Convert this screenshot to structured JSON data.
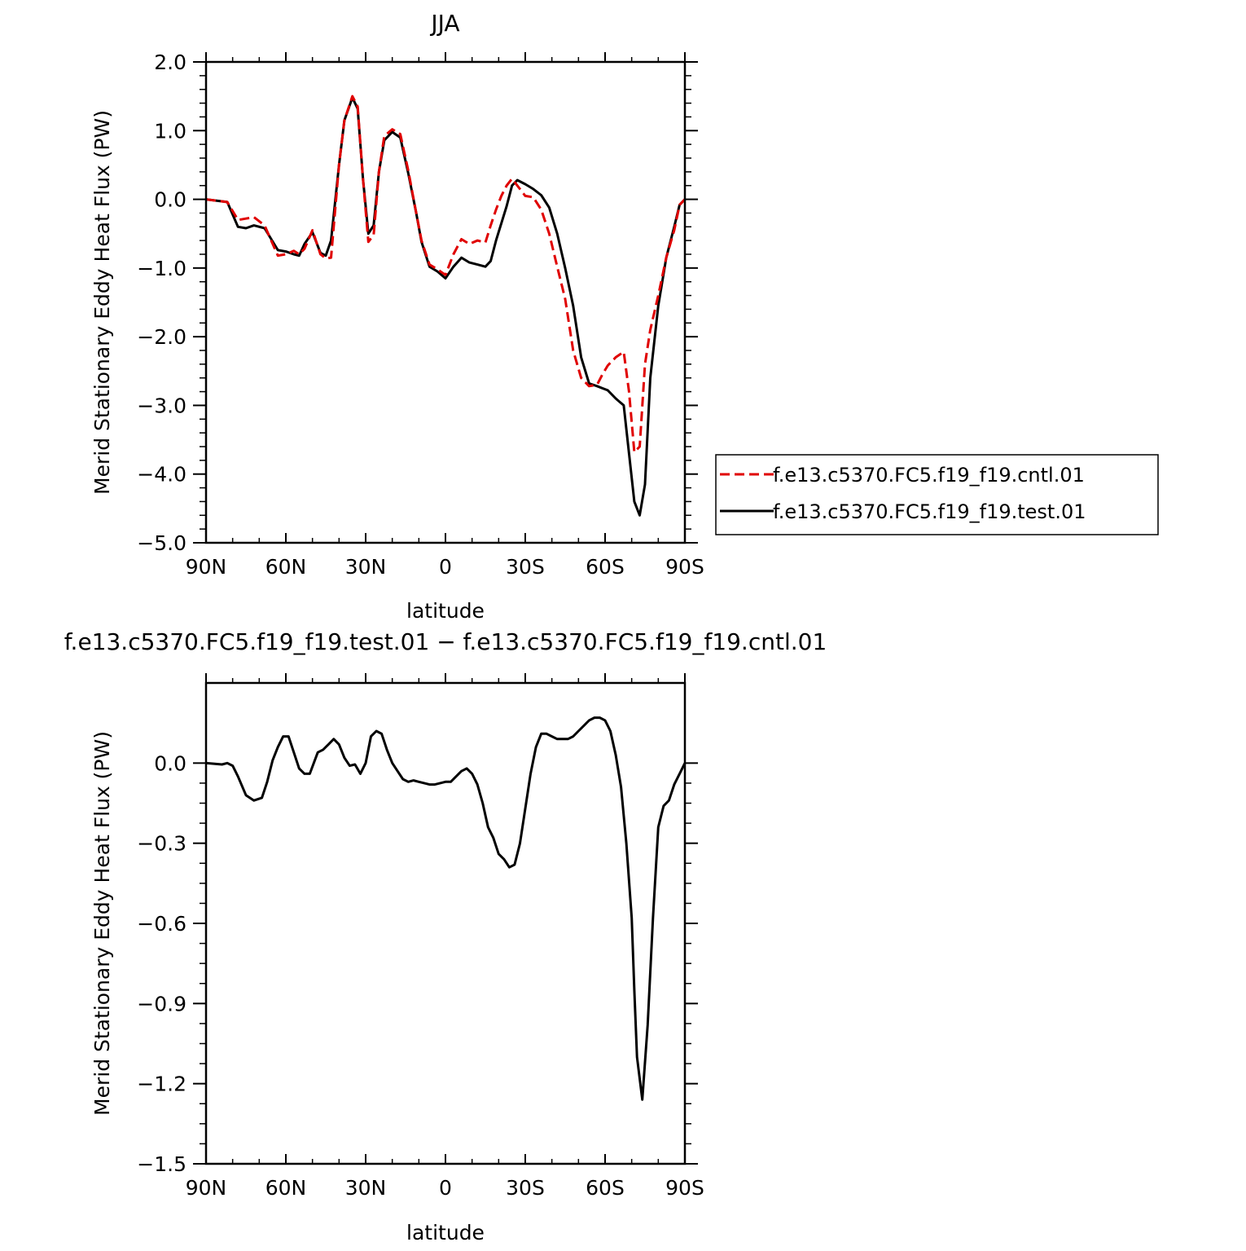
{
  "chart_data": [
    {
      "type": "line",
      "title": "JJA",
      "xlabel": "latitude",
      "ylabel": "Merid Stationary Eddy Heat Flux (PW)",
      "xlim": [
        90,
        -90
      ],
      "ylim": [
        -5.0,
        2.0
      ],
      "x_ticks": [
        90,
        60,
        30,
        0,
        -30,
        -60,
        -90
      ],
      "x_tick_labels": [
        "90N",
        "60N",
        "30N",
        "0",
        "30S",
        "60S",
        "90S"
      ],
      "y_ticks": [
        2.0,
        1.0,
        0.0,
        -1.0,
        -2.0,
        -3.0,
        -4.0,
        -5.0
      ],
      "y_tick_labels": [
        "2.0",
        "1.0",
        "0.0",
        "−1.0",
        "−2.0",
        "−3.0",
        "−4.0",
        "−5.0"
      ],
      "grid": false,
      "legend_position": "right",
      "series": [
        {
          "name": "f.e13.c5370.FC5.f19_f19.cntl.01",
          "color": "#e00000",
          "dash": "dashed",
          "x": [
            90,
            82,
            78,
            75,
            72,
            68,
            63,
            60,
            57,
            55,
            53,
            50,
            47,
            45,
            43,
            40,
            38,
            35,
            33,
            31,
            29,
            27,
            25,
            23,
            20,
            17,
            14,
            11,
            9,
            6,
            3,
            0,
            -3,
            -6,
            -9,
            -12,
            -15,
            -17,
            -19,
            -21,
            -23,
            -25,
            -27,
            -30,
            -33,
            -36,
            -39,
            -42,
            -45,
            -48,
            -51,
            -54,
            -57,
            -59,
            -61,
            -64,
            -67,
            -69,
            -71,
            -73,
            -75,
            -77,
            -80,
            -83,
            -86,
            -88,
            -90
          ],
          "y": [
            0.0,
            -0.04,
            -0.3,
            -0.28,
            -0.26,
            -0.38,
            -0.82,
            -0.8,
            -0.75,
            -0.8,
            -0.72,
            -0.45,
            -0.8,
            -0.86,
            -0.85,
            0.5,
            1.15,
            1.5,
            1.35,
            0.3,
            -0.62,
            -0.52,
            0.4,
            0.92,
            1.02,
            0.95,
            0.42,
            -0.2,
            -0.6,
            -0.95,
            -1.02,
            -1.1,
            -0.8,
            -0.58,
            -0.65,
            -0.6,
            -0.63,
            -0.38,
            -0.15,
            0.05,
            0.2,
            0.3,
            0.2,
            0.05,
            0.03,
            -0.15,
            -0.5,
            -0.98,
            -1.45,
            -2.2,
            -2.6,
            -2.72,
            -2.7,
            -2.55,
            -2.42,
            -2.3,
            -2.22,
            -2.8,
            -3.68,
            -3.6,
            -2.4,
            -1.9,
            -1.4,
            -0.85,
            -0.45,
            -0.08,
            0.0
          ]
        },
        {
          "name": "f.e13.c5370.FC5.f19_f19.test.01",
          "color": "#000000",
          "dash": "solid",
          "x": [
            90,
            82,
            78,
            75,
            72,
            68,
            63,
            60,
            57,
            55,
            53,
            50,
            47,
            45,
            43,
            40,
            38,
            35,
            33,
            31,
            29,
            27,
            25,
            23,
            20,
            17,
            14,
            11,
            9,
            6,
            3,
            0,
            -3,
            -6,
            -9,
            -12,
            -15,
            -17,
            -19,
            -21,
            -23,
            -25,
            -27,
            -30,
            -33,
            -36,
            -39,
            -42,
            -45,
            -48,
            -51,
            -54,
            -57,
            -59,
            -61,
            -64,
            -67,
            -69,
            -71,
            -73,
            -75,
            -77,
            -80,
            -83,
            -86,
            -88,
            -90
          ],
          "y": [
            0.0,
            -0.04,
            -0.4,
            -0.42,
            -0.38,
            -0.42,
            -0.74,
            -0.76,
            -0.8,
            -0.82,
            -0.65,
            -0.48,
            -0.78,
            -0.82,
            -0.6,
            0.5,
            1.15,
            1.48,
            1.32,
            0.3,
            -0.5,
            -0.38,
            0.4,
            0.86,
            0.98,
            0.9,
            0.38,
            -0.2,
            -0.62,
            -0.98,
            -1.05,
            -1.15,
            -0.98,
            -0.85,
            -0.92,
            -0.95,
            -0.98,
            -0.9,
            -0.6,
            -0.35,
            -0.1,
            0.2,
            0.28,
            0.22,
            0.15,
            0.06,
            -0.12,
            -0.5,
            -1.0,
            -1.55,
            -2.3,
            -2.68,
            -2.72,
            -2.75,
            -2.78,
            -2.9,
            -3.0,
            -3.7,
            -4.4,
            -4.6,
            -4.15,
            -2.6,
            -1.55,
            -0.85,
            -0.4,
            -0.08,
            0.0
          ]
        }
      ]
    },
    {
      "type": "line",
      "title": "f.e13.c5370.FC5.f19_f19.test.01 − f.e13.c5370.FC5.f19_f19.cntl.01",
      "xlabel": "latitude",
      "ylabel": "Merid Stationary Eddy Heat Flux (PW)",
      "xlim": [
        90,
        -90
      ],
      "ylim": [
        -1.5,
        0.3
      ],
      "x_ticks": [
        90,
        60,
        30,
        0,
        -30,
        -60,
        -90
      ],
      "x_tick_labels": [
        "90N",
        "60N",
        "30N",
        "0",
        "30S",
        "60S",
        "90S"
      ],
      "y_ticks": [
        0.0,
        -0.3,
        -0.6,
        -0.9,
        -1.2,
        -1.5
      ],
      "y_tick_labels": [
        "0.0",
        "−0.3",
        "−0.6",
        "−0.9",
        "−1.2",
        "−1.5"
      ],
      "grid": false,
      "series": [
        {
          "color": "#000000",
          "dash": "solid",
          "x": [
            90,
            84,
            82,
            80,
            78,
            75,
            72,
            69,
            67,
            65,
            63,
            61,
            59,
            57,
            55,
            53,
            51,
            48,
            46,
            44,
            42,
            40,
            38,
            36,
            34,
            32,
            30,
            28,
            26,
            24,
            22,
            20,
            18,
            16,
            14,
            12,
            10,
            8,
            6,
            4,
            2,
            0,
            -2,
            -4,
            -6,
            -8,
            -10,
            -12,
            -14,
            -16,
            -18,
            -20,
            -22,
            -24,
            -26,
            -28,
            -30,
            -32,
            -34,
            -36,
            -38,
            -40,
            -42,
            -44,
            -46,
            -48,
            -50,
            -52,
            -54,
            -56,
            -58,
            -60,
            -62,
            -64,
            -66,
            -68,
            -70,
            -71,
            -72,
            -74,
            -76,
            -78,
            -80,
            -82,
            -84,
            -86,
            -88,
            -90
          ],
          "y": [
            0.0,
            -0.005,
            0.0,
            -0.01,
            -0.05,
            -0.12,
            -0.14,
            -0.13,
            -0.07,
            0.01,
            0.06,
            0.1,
            0.1,
            0.04,
            -0.02,
            -0.04,
            -0.04,
            0.04,
            0.05,
            0.07,
            0.09,
            0.07,
            0.02,
            -0.01,
            -0.005,
            -0.04,
            0.0,
            0.1,
            0.12,
            0.11,
            0.05,
            0.0,
            -0.03,
            -0.06,
            -0.07,
            -0.065,
            -0.07,
            -0.075,
            -0.08,
            -0.08,
            -0.075,
            -0.07,
            -0.07,
            -0.05,
            -0.03,
            -0.02,
            -0.04,
            -0.08,
            -0.15,
            -0.24,
            -0.28,
            -0.34,
            -0.36,
            -0.39,
            -0.38,
            -0.3,
            -0.17,
            -0.04,
            0.06,
            0.11,
            0.11,
            0.1,
            0.09,
            0.09,
            0.09,
            0.1,
            0.12,
            0.14,
            0.16,
            0.17,
            0.17,
            0.16,
            0.12,
            0.03,
            -0.09,
            -0.3,
            -0.58,
            -0.85,
            -1.1,
            -1.26,
            -0.98,
            -0.58,
            -0.24,
            -0.16,
            -0.14,
            -0.08,
            -0.04,
            0.0
          ]
        }
      ]
    }
  ]
}
